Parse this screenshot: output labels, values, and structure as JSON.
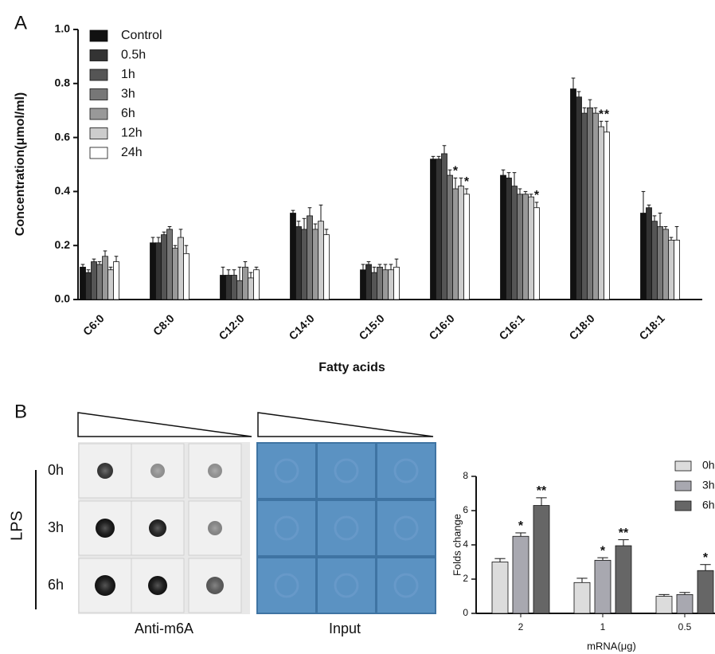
{
  "panel_labels": [
    "A",
    "B"
  ],
  "chart_data": [
    {
      "type": "bar",
      "y_label": "Concentration(μmol/ml)",
      "x_label": "Fatty acids",
      "categories": [
        "C6:0",
        "C8:0",
        "C12:0",
        "C14:0",
        "C15:0",
        "C16:0",
        "C16:1",
        "C18:0",
        "C18:1"
      ],
      "ylim": [
        0,
        1.0
      ],
      "yticks": [
        {
          "value": 0,
          "label": "0.0"
        },
        0.2,
        0.4,
        0.6,
        0.8,
        {
          "value": 1.0,
          "label": "1.0"
        }
      ],
      "series": [
        {
          "name": "Control",
          "color": "#111111",
          "values": [
            0.12,
            0.21,
            0.09,
            0.32,
            0.11,
            0.52,
            0.46,
            0.78,
            0.32
          ],
          "errors": [
            0.01,
            0.02,
            0.03,
            0.01,
            0.02,
            0.01,
            0.02,
            0.04,
            0.08
          ],
          "significance": [
            null,
            null,
            null,
            null,
            null,
            null,
            null,
            null,
            null
          ]
        },
        {
          "name": "0.5h",
          "color": "#333333",
          "values": [
            0.1,
            0.21,
            0.09,
            0.27,
            0.13,
            0.52,
            0.45,
            0.75,
            0.34
          ],
          "errors": [
            0.01,
            0.02,
            0.02,
            0.02,
            0.01,
            0.01,
            0.02,
            0.02,
            0.01
          ],
          "significance": [
            null,
            null,
            null,
            null,
            null,
            null,
            null,
            null,
            null
          ]
        },
        {
          "name": "1h",
          "color": "#555555",
          "values": [
            0.14,
            0.24,
            0.09,
            0.26,
            0.1,
            0.54,
            0.42,
            0.69,
            0.29
          ],
          "errors": [
            0.01,
            0.01,
            0.02,
            0.04,
            0.02,
            0.03,
            0.05,
            0.02,
            0.02
          ],
          "significance": [
            null,
            null,
            null,
            null,
            null,
            null,
            null,
            null,
            null
          ]
        },
        {
          "name": "3h",
          "color": "#777777",
          "values": [
            0.13,
            0.26,
            0.07,
            0.31,
            0.12,
            0.46,
            0.39,
            0.71,
            0.27
          ],
          "errors": [
            0.01,
            0.01,
            0.05,
            0.03,
            0.01,
            0.02,
            0.02,
            0.03,
            0.05
          ],
          "significance": [
            null,
            null,
            null,
            null,
            null,
            null,
            null,
            null,
            null
          ]
        },
        {
          "name": "6h",
          "color": "#999999",
          "values": [
            0.16,
            0.19,
            0.12,
            0.26,
            0.11,
            0.41,
            0.39,
            0.69,
            0.26
          ],
          "errors": [
            0.02,
            0.01,
            0.02,
            0.02,
            0.02,
            0.04,
            0.01,
            0.02,
            0.01
          ],
          "significance": [
            null,
            null,
            null,
            null,
            null,
            "*",
            null,
            null,
            null
          ]
        },
        {
          "name": "12h",
          "color": "#cccccc",
          "values": [
            0.11,
            0.23,
            0.08,
            0.29,
            0.11,
            0.42,
            0.38,
            0.64,
            0.22
          ],
          "errors": [
            0.01,
            0.03,
            0.02,
            0.06,
            0.02,
            0.03,
            0.01,
            0.02,
            0.01
          ],
          "significance": [
            null,
            null,
            null,
            null,
            null,
            null,
            null,
            "*",
            null
          ]
        },
        {
          "name": "24h",
          "color": "#ffffff",
          "values": [
            0.14,
            0.17,
            0.11,
            0.24,
            0.12,
            0.39,
            0.34,
            0.62,
            0.22
          ],
          "errors": [
            0.02,
            0.03,
            0.01,
            0.02,
            0.03,
            0.02,
            0.02,
            0.04,
            0.05
          ],
          "significance": [
            null,
            null,
            null,
            null,
            null,
            "*",
            "*",
            "*",
            null
          ]
        }
      ]
    },
    {
      "type": "bar",
      "y_label": "Folds change",
      "x_label": "mRNA(μg)",
      "categories": [
        "2",
        "1",
        "0.5"
      ],
      "ylim": [
        0,
        8
      ],
      "yticks": [
        0,
        2,
        4,
        6,
        8
      ],
      "series": [
        {
          "name": "0h",
          "color": "#dcdcdc",
          "values": [
            3.0,
            1.8,
            1.0
          ],
          "errors": [
            0.2,
            0.25,
            0.1
          ],
          "significance": [
            null,
            null,
            null
          ]
        },
        {
          "name": "3h",
          "color": "#a8a8b0",
          "values": [
            4.5,
            3.1,
            1.1
          ],
          "errors": [
            0.2,
            0.15,
            0.12
          ],
          "significance": [
            "*",
            "*",
            null
          ]
        },
        {
          "name": "6h",
          "color": "#666666",
          "values": [
            6.3,
            3.95,
            2.5
          ],
          "errors": [
            0.45,
            0.35,
            0.35
          ],
          "significance": [
            "**",
            "**",
            "*"
          ]
        }
      ]
    }
  ],
  "blot": {
    "rows": [
      "0h",
      "3h",
      "6h"
    ],
    "group_label": "LPS",
    "panels": [
      "Anti-m6A",
      "Input"
    ]
  }
}
